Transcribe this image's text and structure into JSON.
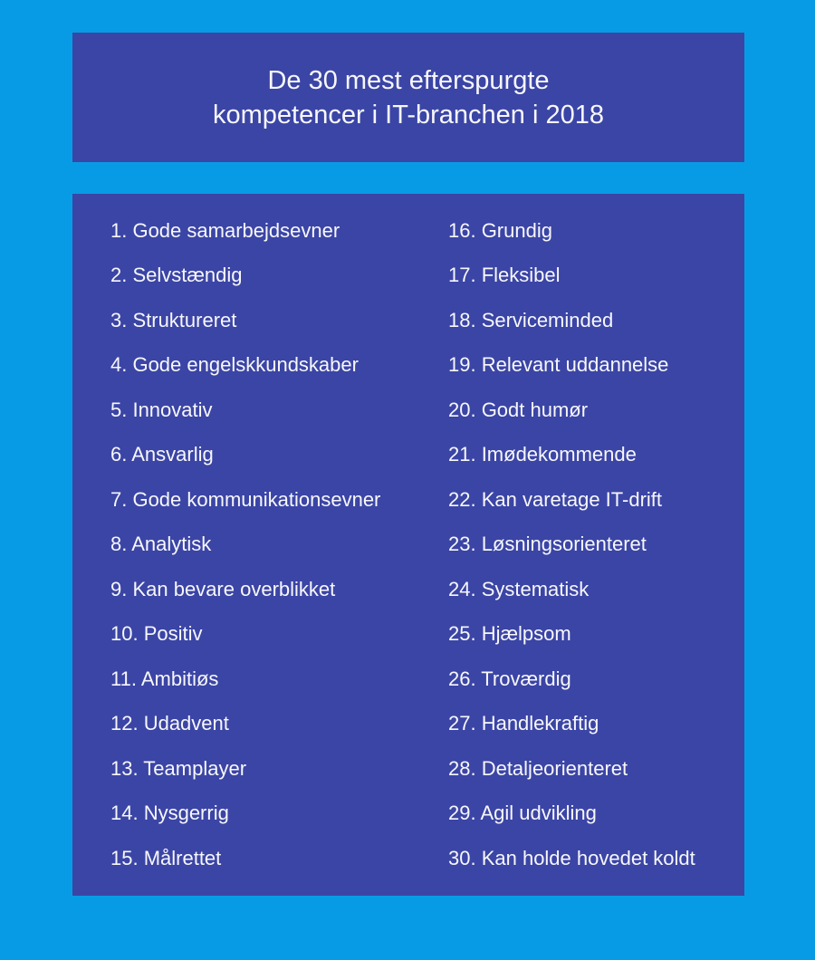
{
  "header": {
    "title_line1": "De 30 mest efterspurgte",
    "title_line2": "kompetencer i IT-branchen i 2018"
  },
  "list": {
    "left_items": [
      "1. Gode samarbejdsevner",
      "2. Selvstændig",
      "3. Struktureret",
      "4. Gode engelskkundskaber",
      "5. Innovativ",
      "6. Ansvarlig",
      "7. Gode kommunikationsevner",
      "8. Analytisk",
      "9. Kan bevare overblikket",
      "10. Positiv",
      "11. Ambitiøs",
      "12. Udadvent",
      "13. Teamplayer",
      "14. Nysgerrig",
      "15. Målrettet"
    ],
    "right_items": [
      "16. Grundig",
      "17. Fleksibel",
      "18. Serviceminded",
      "19. Relevant uddannelse",
      "20. Godt humør",
      "21. Imødekommende",
      "22. Kan varetage IT-drift",
      "23. Løsningsorienteret",
      "24. Systematisk",
      "25. Hjælpsom",
      "26. Troværdig",
      "27. Handlekraftig",
      "28. Detaljeorienteret",
      "29. Agil udvikling",
      "30. Kan holde hovedet koldt"
    ]
  },
  "colors": {
    "background": "#089BE5",
    "panel": "#3B45A5",
    "text": "#F7F7FA"
  }
}
